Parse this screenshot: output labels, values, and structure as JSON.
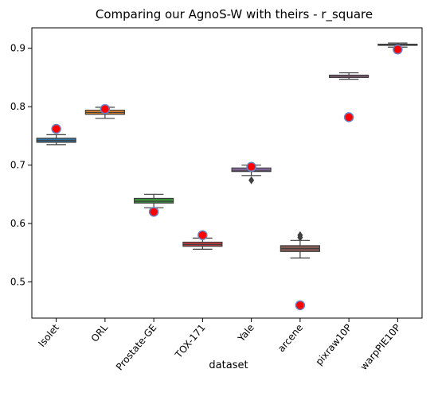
{
  "chart_data": {
    "type": "box",
    "title": "Comparing our AgnoS-W with theirs - r_square",
    "xlabel": "dataset",
    "ylabel": "",
    "ylim": [
      0.438,
      0.935
    ],
    "yticks": [
      0.5,
      0.6,
      0.7,
      0.8,
      0.9
    ],
    "ytick_labels": [
      "0.5",
      "0.6",
      "0.7",
      "0.8",
      "0.9"
    ],
    "grid": false,
    "categories": [
      "Isolet",
      "ORL",
      "Prostate-GE",
      "TOX-171",
      "Yale",
      "arcene",
      "pixraw10P",
      "warpPIE10P"
    ],
    "box_colors": [
      "#3274a1",
      "#e1812c",
      "#3a923a",
      "#c03d3e",
      "#9372b2",
      "#845b53",
      "#d684bd",
      "#7f7f7f"
    ],
    "boxes": [
      {
        "whisker_low": 0.735,
        "q1": 0.739,
        "median": 0.742,
        "q3": 0.746,
        "whisker_high": 0.752,
        "outliers": []
      },
      {
        "whisker_low": 0.78,
        "q1": 0.787,
        "median": 0.79,
        "q3": 0.794,
        "whisker_high": 0.799,
        "outliers": []
      },
      {
        "whisker_low": 0.627,
        "q1": 0.635,
        "median": 0.638,
        "q3": 0.643,
        "whisker_high": 0.65,
        "outliers": []
      },
      {
        "whisker_low": 0.556,
        "q1": 0.561,
        "median": 0.564,
        "q3": 0.568,
        "whisker_high": 0.575,
        "outliers": []
      },
      {
        "whisker_low": 0.682,
        "q1": 0.689,
        "median": 0.691,
        "q3": 0.695,
        "whisker_high": 0.7,
        "outliers": [
          0.674
        ]
      },
      {
        "whisker_low": 0.541,
        "q1": 0.552,
        "median": 0.557,
        "q3": 0.562,
        "whisker_high": 0.571,
        "outliers": [
          0.58,
          0.576
        ]
      },
      {
        "whisker_low": 0.847,
        "q1": 0.85,
        "median": 0.852,
        "q3": 0.854,
        "whisker_high": 0.858,
        "outliers": []
      },
      {
        "whisker_low": 0.902,
        "q1": 0.905,
        "median": 0.906,
        "q3": 0.907,
        "whisker_high": 0.909,
        "outliers": []
      }
    ],
    "highlight_points": {
      "fill": "#ff0000",
      "edge": "#6b83c4",
      "values": [
        0.762,
        0.796,
        0.62,
        0.58,
        0.697,
        0.46,
        0.782,
        0.898
      ]
    }
  }
}
